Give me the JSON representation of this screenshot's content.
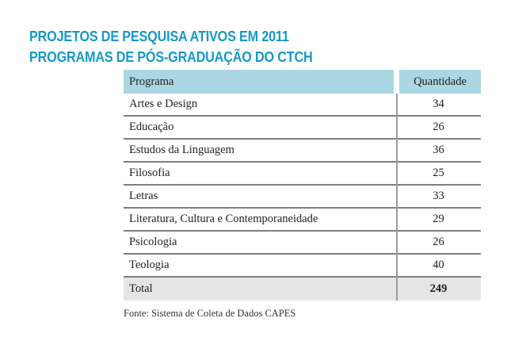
{
  "theme": {
    "title_color": "#1898c6",
    "header_bg": "#aad7e3",
    "total_bg": "#e5e5e5",
    "line_color": "#7f7f7f",
    "sep_color": "#9b9b9b",
    "text_color": "#1f1f1f"
  },
  "title": {
    "line1": "PROJETOS DE PESQUISA ATIVOS EM 2011",
    "line2": "PROGRAMAS DE PÓS-GRADUAÇÃO DO CTCH"
  },
  "table": {
    "header": {
      "program": "Programa",
      "quantity": "Quantidade"
    },
    "rows": [
      {
        "program": "Artes e Design",
        "quantity": "34"
      },
      {
        "program": "Educação",
        "quantity": "26"
      },
      {
        "program": "Estudos da Linguagem",
        "quantity": "36"
      },
      {
        "program": "Filosofia",
        "quantity": "25"
      },
      {
        "program": "Letras",
        "quantity": "33"
      },
      {
        "program": "Literatura, Cultura e Contemporaneidade",
        "quantity": "29"
      },
      {
        "program": "Psicologia",
        "quantity": "26"
      },
      {
        "program": "Teologia",
        "quantity": "40"
      }
    ],
    "total": {
      "label": "Total",
      "value": "249"
    }
  },
  "source_note": "Fonte: Sistema de Coleta de Dados CAPES",
  "chart_data": {
    "type": "table",
    "title": "PROJETOS DE PESQUISA ATIVOS EM 2011 — PROGRAMAS DE PÓS-GRADUAÇÃO DO CTCH",
    "columns": [
      "Programa",
      "Quantidade"
    ],
    "rows": [
      [
        "Artes e Design",
        34
      ],
      [
        "Educação",
        26
      ],
      [
        "Estudos da Linguagem",
        36
      ],
      [
        "Filosofia",
        25
      ],
      [
        "Letras",
        33
      ],
      [
        "Literatura, Cultura e Contemporaneidade",
        29
      ],
      [
        "Psicologia",
        26
      ],
      [
        "Teologia",
        40
      ]
    ],
    "total": [
      "Total",
      249
    ],
    "source": "Fonte: Sistema de Coleta de Dados CAPES"
  }
}
